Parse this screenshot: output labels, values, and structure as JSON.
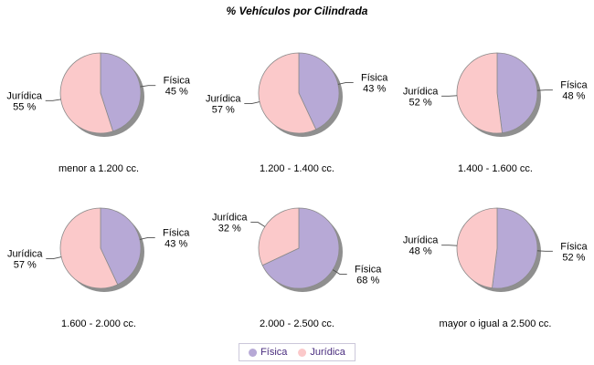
{
  "colors": {
    "background": "#ffffff",
    "title_text": "#000000",
    "label_text": "#000000",
    "leader_line": "#4d4d4d",
    "outline": "#8a8a8a",
    "shadow": "#8f8f8f",
    "legend_text": "#4a2d7f",
    "legend_border": "#cbc7da"
  },
  "chart_data": {
    "type": "pie",
    "title": "% Vehículos por Cilindrada",
    "legend_position": "bottom",
    "value_suffix": " %",
    "series": [
      {
        "id": "fisica",
        "name": "Física",
        "color": "#b7a9d6"
      },
      {
        "id": "juridica",
        "name": "Jurídica",
        "color": "#fbc9ca"
      }
    ],
    "charts": [
      {
        "category": "menor a 1.200 cc.",
        "values": {
          "fisica": 45,
          "juridica": 55
        }
      },
      {
        "category": "1.200 - 1.400 cc.",
        "values": {
          "fisica": 43,
          "juridica": 57
        }
      },
      {
        "category": "1.400 - 1.600 cc.",
        "values": {
          "fisica": 48,
          "juridica": 52
        }
      },
      {
        "category": "1.600 - 2.000 cc.",
        "values": {
          "fisica": 43,
          "juridica": 57
        }
      },
      {
        "category": "2.000 - 2.500 cc.",
        "values": {
          "fisica": 68,
          "juridica": 32
        }
      },
      {
        "category": "mayor o igual a 2.500 cc.",
        "values": {
          "fisica": 52,
          "juridica": 48
        }
      }
    ]
  }
}
